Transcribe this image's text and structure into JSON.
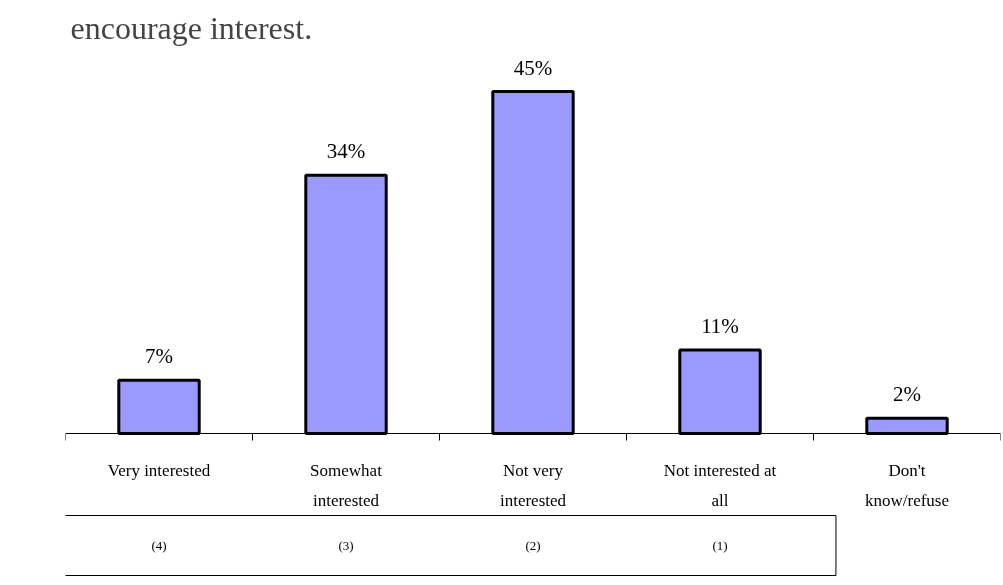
{
  "chart_data": {
    "type": "bar",
    "title": "encourage interest.",
    "categories": [
      "Very interested",
      "Somewhat\ninterested",
      "Not very\ninterested",
      "Not interested at\nall",
      "Don't\nknow/refuse"
    ],
    "values": [
      7,
      34,
      45,
      11,
      2
    ],
    "value_labels": [
      "7%",
      "34%",
      "45%",
      "11%",
      "2%"
    ],
    "color": "#9999ff",
    "annotations": [
      "(4)",
      "(3)",
      "(2)",
      "(1)"
    ],
    "grid": false
  }
}
